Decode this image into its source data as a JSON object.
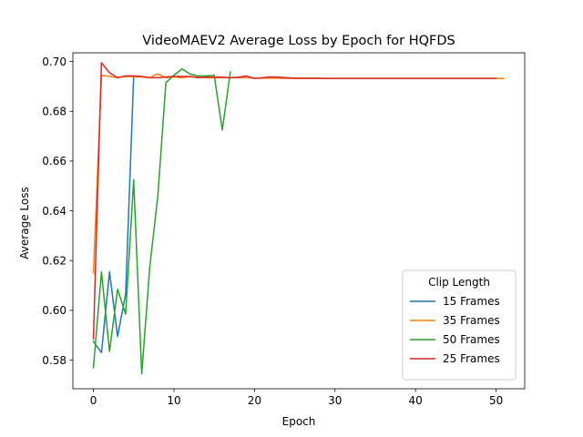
{
  "chart_data": {
    "type": "line",
    "title": "VideoMAEV2 Average Loss by Epoch for HQFDS",
    "xlabel": "Epoch",
    "ylabel": "Average Loss",
    "xlim": [
      -2.55,
      53.55
    ],
    "ylim": [
      0.5685,
      0.7035
    ],
    "xticks": [
      0,
      10,
      20,
      30,
      40,
      50
    ],
    "yticks": [
      0.58,
      0.6,
      0.62,
      0.64,
      0.66,
      0.68,
      0.7
    ],
    "ytick_labels": [
      "0.58",
      "0.60",
      "0.62",
      "0.64",
      "0.66",
      "0.68",
      "0.70"
    ],
    "grid": false,
    "legend": {
      "title": "Clip Length",
      "position": "bottom-right"
    },
    "series": [
      {
        "name": "15 Frames",
        "color": "#1f77b4",
        "x": [
          0,
          1,
          2,
          3,
          4,
          5
        ],
        "y": [
          0.5875,
          0.583,
          0.6155,
          0.5895,
          0.6065,
          0.694
        ]
      },
      {
        "name": "35 Frames",
        "color": "#ff7f0e",
        "x": [
          0,
          1,
          2,
          3,
          4,
          5,
          6,
          7,
          8,
          9,
          10,
          11,
          12,
          13,
          14,
          15,
          16,
          17,
          18,
          19,
          20,
          21,
          22,
          23,
          24,
          25,
          26,
          27,
          28,
          29,
          30,
          31,
          32,
          33,
          34,
          35,
          36,
          37,
          38,
          39,
          40,
          41,
          42,
          43,
          44,
          45,
          46,
          47,
          48,
          49,
          50,
          51
        ],
        "y": [
          0.615,
          0.6945,
          0.694,
          0.6935,
          0.694,
          0.6938,
          0.6938,
          0.6935,
          0.695,
          0.6935,
          0.6938,
          0.6935,
          0.694,
          0.6937,
          0.6935,
          0.6935,
          0.6935,
          0.6935,
          0.6935,
          0.6935,
          0.6933,
          0.6933,
          0.6933,
          0.6933,
          0.6932,
          0.6932,
          0.6932,
          0.6932,
          0.6932,
          0.6932,
          0.6932,
          0.6932,
          0.6932,
          0.6932,
          0.6932,
          0.6932,
          0.6932,
          0.6932,
          0.6932,
          0.6932,
          0.6932,
          0.6932,
          0.6932,
          0.6932,
          0.6932,
          0.6932,
          0.6932,
          0.6932,
          0.6932,
          0.6932,
          0.6932,
          0.6932
        ]
      },
      {
        "name": "50 Frames",
        "color": "#2ca02c",
        "x": [
          0,
          1,
          2,
          3,
          4,
          5,
          6,
          7,
          8,
          9,
          10,
          11,
          12,
          13,
          14,
          15,
          16,
          17
        ],
        "y": [
          0.577,
          0.6155,
          0.5835,
          0.6085,
          0.5985,
          0.6525,
          0.5745,
          0.6175,
          0.646,
          0.6915,
          0.6945,
          0.697,
          0.695,
          0.6942,
          0.6942,
          0.6945,
          0.6725,
          0.6958
        ]
      },
      {
        "name": "25 Frames",
        "color": "#d62728",
        "x": [
          0,
          1,
          2,
          3,
          4,
          5,
          6,
          7,
          8,
          9,
          10,
          11,
          12,
          13,
          14,
          15,
          16,
          17,
          18,
          19,
          20,
          21,
          22,
          23,
          24,
          25,
          26,
          27,
          28,
          29,
          30,
          31,
          32,
          33,
          34,
          35,
          36,
          37,
          38,
          39,
          40,
          41,
          42,
          43,
          44,
          45,
          46,
          47,
          48,
          49,
          50
        ],
        "y": [
          0.5885,
          0.6995,
          0.6955,
          0.6935,
          0.6942,
          0.6942,
          0.694,
          0.6935,
          0.6935,
          0.6938,
          0.694,
          0.694,
          0.694,
          0.6935,
          0.6937,
          0.6937,
          0.6937,
          0.6935,
          0.6937,
          0.6942,
          0.6932,
          0.6935,
          0.6938,
          0.6937,
          0.6935,
          0.6933,
          0.6933,
          0.6933,
          0.6933,
          0.6932,
          0.6932,
          0.6932,
          0.6932,
          0.6932,
          0.6932,
          0.6932,
          0.6932,
          0.6932,
          0.6932,
          0.6932,
          0.6932,
          0.6932,
          0.6932,
          0.6932,
          0.6932,
          0.6932,
          0.6932,
          0.6932,
          0.6932,
          0.6932,
          0.6932
        ]
      }
    ]
  }
}
